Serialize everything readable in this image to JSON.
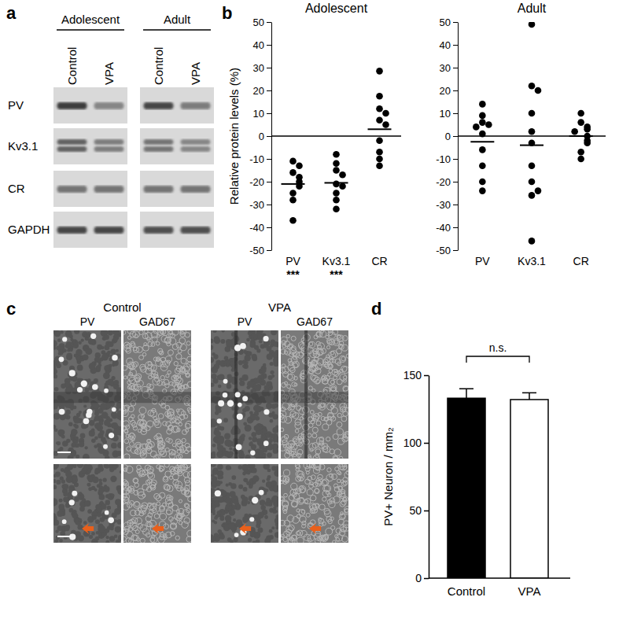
{
  "panel_labels": [
    "a",
    "b",
    "c",
    "d"
  ],
  "blot": {
    "groups": [
      "Adolescent",
      "Adult"
    ],
    "lanes": [
      "Control",
      "VPA",
      "Control",
      "VPA"
    ],
    "rows": [
      "PV",
      "Kv3.1",
      "CR",
      "GAPDH"
    ]
  },
  "micrographs": {
    "groups": [
      "Control",
      "VPA"
    ],
    "channels": [
      "PV",
      "GAD67",
      "PV",
      "GAD67"
    ]
  },
  "chart_data": [
    {
      "type": "strip",
      "title": "Adolescent",
      "ylabel": "Relative protein levels (%)",
      "categories": [
        "PV",
        "Kv3.1",
        "CR"
      ],
      "values": [
        [
          -11,
          -13,
          -16,
          -18,
          -20,
          -22,
          -25,
          -28,
          -37
        ],
        [
          -8,
          -12,
          -15,
          -17,
          -21,
          -22,
          -25,
          -28,
          -32
        ],
        [
          28.5,
          17.5,
          12,
          10,
          7,
          5,
          -2,
          -7,
          -10,
          -13
        ]
      ],
      "means": [
        -21,
        -20.5,
        3
      ],
      "significance": [
        "***",
        "***",
        null
      ],
      "baseline": 0,
      "ylim": [
        -50,
        50
      ],
      "yticks": [
        -50,
        -40,
        -30,
        -20,
        -10,
        0,
        10,
        20,
        30,
        40,
        50
      ]
    },
    {
      "type": "strip",
      "title": "Adult",
      "categories": [
        "PV",
        "Kv3.1",
        "CR"
      ],
      "values": [
        [
          14,
          9,
          6,
          5,
          4,
          1,
          -6,
          -13,
          -20,
          -24
        ],
        [
          49,
          22,
          20,
          10,
          2,
          -3,
          -13,
          -20,
          -26,
          -24,
          -46
        ],
        [
          10,
          6,
          4,
          3,
          2,
          0,
          -2,
          -3,
          -7,
          -10
        ]
      ],
      "means": [
        -2.5,
        -4,
        0
      ],
      "baseline": 0,
      "ylim": [
        -50,
        50
      ],
      "yticks": [
        -50,
        -40,
        -30,
        -20,
        -10,
        0,
        10,
        20,
        30,
        40,
        50
      ]
    },
    {
      "type": "bar",
      "ylabel": "PV+ Neuron / mm₂",
      "categories": [
        "Control",
        "VPA"
      ],
      "values": [
        133,
        132
      ],
      "errors": [
        7,
        5
      ],
      "colors": [
        "#000000",
        "#ffffff"
      ],
      "annotations": [
        "n.s."
      ],
      "ylim": [
        0,
        150
      ],
      "yticks": [
        0,
        50,
        100,
        150
      ]
    }
  ]
}
